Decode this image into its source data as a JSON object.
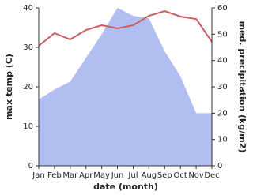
{
  "chart_data": {
    "type": "line-area",
    "categories": [
      "Jan",
      "Feb",
      "Mar",
      "Apr",
      "May",
      "Jun",
      "Jul",
      "Aug",
      "Sep",
      "Oct",
      "Nov",
      "Dec"
    ],
    "x_label": "date (month)",
    "y_label": "max temp (C)",
    "y2_label": "med. precipitation (kg/m2)",
    "ylim": [
      0,
      40
    ],
    "yticks": [
      0,
      10,
      20,
      30,
      40
    ],
    "y2lim": [
      0,
      60
    ],
    "y2ticks": [
      0,
      10,
      20,
      30,
      40,
      50,
      60
    ],
    "series": [
      {
        "name": "max temp",
        "type": "line",
        "color": "#cd5c5c",
        "values": [
          30.4,
          33.6,
          32,
          34.4,
          35.6,
          34.8,
          35.6,
          38,
          39.2,
          37.8,
          37.2,
          31.4
        ]
      },
      {
        "name": "med. precipitation",
        "type": "area",
        "axis": "y2",
        "color": "#b0bef2",
        "values": [
          25.2,
          29,
          32,
          41,
          50,
          60,
          57,
          56,
          43.5,
          34,
          20,
          20
        ]
      }
    ]
  }
}
